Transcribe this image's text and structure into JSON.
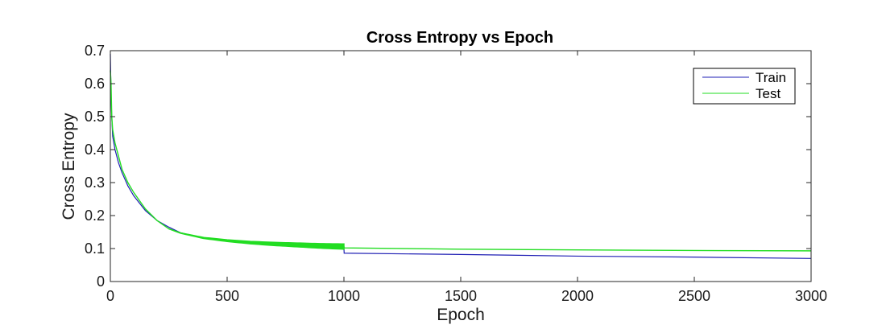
{
  "chart_data": {
    "type": "line",
    "title": "Cross Entropy vs Epoch",
    "xlabel": "Epoch",
    "ylabel": "Cross Entropy",
    "xlim": [
      0,
      3000
    ],
    "ylim": [
      0,
      0.7
    ],
    "xticks": [
      "0",
      "500",
      "1000",
      "1500",
      "2000",
      "2500",
      "3000"
    ],
    "yticks": [
      "0",
      "0.1",
      "0.2",
      "0.3",
      "0.4",
      "0.5",
      "0.6",
      "0.7"
    ],
    "xtick_values": [
      0,
      500,
      1000,
      1500,
      2000,
      2500,
      3000
    ],
    "ytick_values": [
      0,
      0.1,
      0.2,
      0.3,
      0.4,
      0.5,
      0.6,
      0.7
    ],
    "grid": false,
    "legend_position": "top-right",
    "series": [
      {
        "name": "Train",
        "color": "#1f1fb4",
        "x": [
          0,
          3,
          6,
          10,
          20,
          35,
          50,
          75,
          100,
          150,
          200,
          250,
          300,
          400,
          500,
          600,
          700,
          800,
          900,
          1000,
          1001,
          1500,
          2000,
          2500,
          3000
        ],
        "y": [
          0.69,
          0.56,
          0.5,
          0.44,
          0.4,
          0.36,
          0.33,
          0.29,
          0.26,
          0.215,
          0.185,
          0.165,
          0.148,
          0.132,
          0.122,
          0.115,
          0.11,
          0.106,
          0.103,
          0.1,
          0.086,
          0.082,
          0.077,
          0.074,
          0.07
        ]
      },
      {
        "name": "Test",
        "color": "#22dd22",
        "x": [
          0,
          3,
          6,
          10,
          20,
          35,
          50,
          75,
          100,
          150,
          200,
          250,
          300,
          400,
          500,
          600,
          700,
          800,
          900,
          1000,
          1001,
          1500,
          2000,
          2500,
          3000
        ],
        "y": [
          0.64,
          0.6,
          0.5,
          0.46,
          0.42,
          0.38,
          0.34,
          0.3,
          0.27,
          0.22,
          0.185,
          0.16,
          0.147,
          0.132,
          0.124,
          0.118,
          0.114,
          0.111,
          0.108,
          0.106,
          0.102,
          0.098,
          0.096,
          0.094,
          0.093
        ]
      }
    ],
    "oscillation_band": {
      "series": "Test",
      "x_range": [
        250,
        1000
      ],
      "amplitude": 0.008
    }
  }
}
